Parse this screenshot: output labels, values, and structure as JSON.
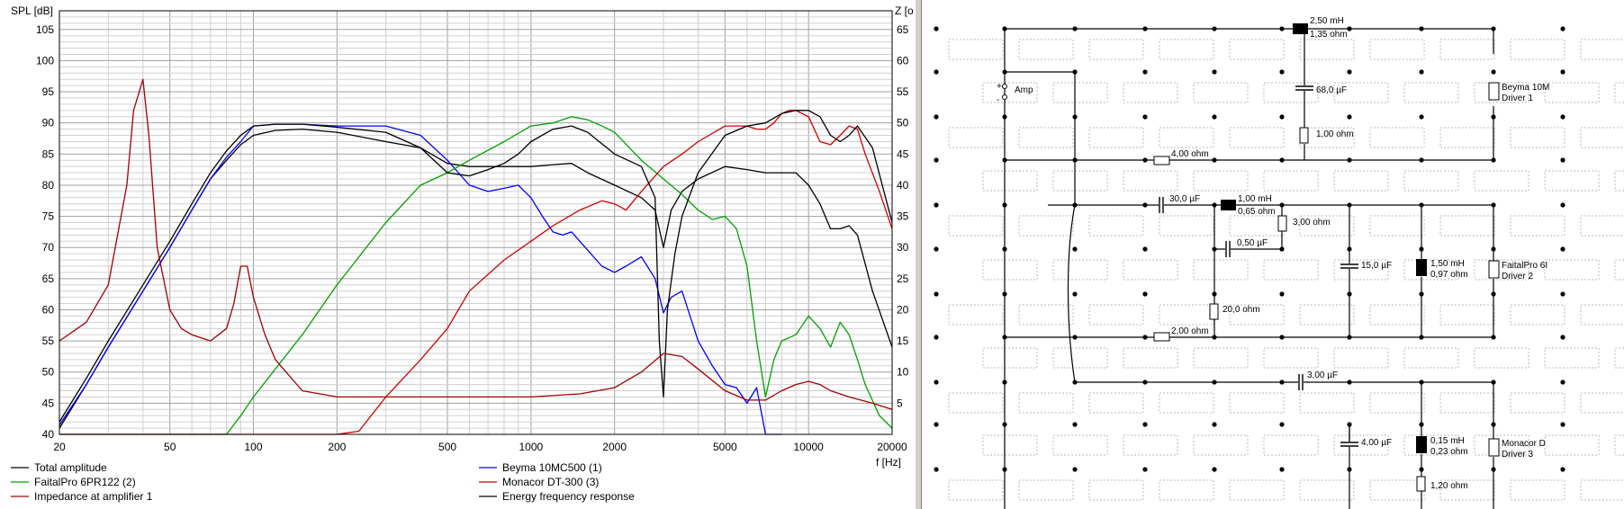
{
  "chart_data": {
    "type": "line",
    "x_scale": "log",
    "xlim": [
      20,
      20000
    ],
    "ylim": [
      40,
      108
    ],
    "y2lim": [
      0,
      68
    ],
    "grid": true,
    "ylabel": "SPL [dB]",
    "y2label": "Z [o",
    "xlabel": "f [Hz]",
    "x_ticks": [
      {
        "v": 20,
        "label": "20"
      },
      {
        "v": 50,
        "label": "50"
      },
      {
        "v": 100,
        "label": "100"
      },
      {
        "v": 200,
        "label": "200"
      },
      {
        "v": 500,
        "label": "500"
      },
      {
        "v": 1000,
        "label": "1000"
      },
      {
        "v": 2000,
        "label": "2000"
      },
      {
        "v": 5000,
        "label": "5000"
      },
      {
        "v": 10000,
        "label": "10000"
      },
      {
        "v": 20000,
        "label": "20000"
      }
    ],
    "y_ticks": [
      {
        "v": 105,
        "label": "105"
      },
      {
        "v": 100,
        "label": "100"
      },
      {
        "v": 95,
        "label": "95"
      },
      {
        "v": 90,
        "label": "90"
      },
      {
        "v": 85,
        "label": "85"
      },
      {
        "v": 80,
        "label": "80"
      },
      {
        "v": 75,
        "label": "75"
      },
      {
        "v": 70,
        "label": "70"
      },
      {
        "v": 65,
        "label": "65"
      },
      {
        "v": 60,
        "label": "60"
      },
      {
        "v": 55,
        "label": "55"
      },
      {
        "v": 50,
        "label": "50"
      },
      {
        "v": 45,
        "label": "45"
      },
      {
        "v": 40,
        "label": "40"
      }
    ],
    "y2_ticks": [
      {
        "v": 65,
        "label": "65"
      },
      {
        "v": 60,
        "label": "60"
      },
      {
        "v": 55,
        "label": "55"
      },
      {
        "v": 50,
        "label": "50"
      },
      {
        "v": 45,
        "label": "45"
      },
      {
        "v": 40,
        "label": "40"
      },
      {
        "v": 35,
        "label": "35"
      },
      {
        "v": 30,
        "label": "30"
      },
      {
        "v": 25,
        "label": "25"
      },
      {
        "v": 20,
        "label": "20"
      },
      {
        "v": 15,
        "label": "15"
      },
      {
        "v": 10,
        "label": "10"
      },
      {
        "v": 5,
        "label": "5"
      }
    ],
    "series": [
      {
        "name": "Total amplitude",
        "color": "#000000",
        "axis": "left",
        "x": [
          20,
          25,
          30,
          40,
          50,
          60,
          70,
          80,
          90,
          100,
          120,
          150,
          200,
          300,
          400,
          500,
          600,
          700,
          800,
          900,
          1000,
          1200,
          1400,
          1600,
          2000,
          2500,
          2800,
          3000,
          3200,
          3500,
          4000,
          5000,
          6000,
          7000,
          8000,
          9000,
          10000,
          11000,
          12000,
          13000,
          14000,
          15000,
          17000,
          20000
        ],
        "y": [
          41,
          48,
          54,
          63,
          70,
          76,
          81,
          84,
          86.5,
          88,
          88.8,
          89,
          88.5,
          87,
          86,
          83.5,
          83,
          83,
          83,
          83,
          83,
          83.3,
          83.5,
          82,
          80,
          78,
          76,
          70,
          76,
          79,
          81,
          83,
          82.5,
          82,
          82,
          82,
          80,
          77,
          73,
          73,
          73.5,
          72,
          63,
          54
        ]
      },
      {
        "name": "Beyma 10MC500 (1)",
        "color": "#0000ff",
        "axis": "left",
        "x": [
          20,
          25,
          30,
          40,
          50,
          60,
          70,
          80,
          90,
          100,
          120,
          150,
          200,
          300,
          400,
          500,
          600,
          700,
          800,
          900,
          1000,
          1100,
          1200,
          1300,
          1400,
          1500,
          1800,
          2000,
          2200,
          2500,
          2800,
          3000,
          3200,
          3500,
          4000,
          4500,
          5000,
          5500,
          6000,
          6500,
          7000,
          8000
        ],
        "y": [
          41.5,
          48,
          54,
          63,
          70,
          76,
          81,
          84.5,
          87,
          89.5,
          89.8,
          89.8,
          89.5,
          89.5,
          88,
          84,
          80,
          79,
          79.5,
          80,
          78,
          75,
          72.5,
          72,
          72.5,
          71,
          67,
          66,
          67,
          68.5,
          65,
          59.5,
          62,
          63,
          55,
          51,
          48,
          47.5,
          45,
          47.5,
          40,
          40
        ]
      },
      {
        "name": "FaitalPro 6PR122 (2)",
        "color": "#00a000",
        "axis": "left",
        "x": [
          20,
          40,
          60,
          80,
          90,
          100,
          150,
          200,
          300,
          400,
          500,
          600,
          800,
          1000,
          1200,
          1400,
          1600,
          1800,
          2000,
          2500,
          3000,
          3500,
          4000,
          4500,
          5000,
          5500,
          6000,
          6500,
          7000,
          7500,
          8000,
          9000,
          10000,
          11000,
          12000,
          13000,
          14000,
          15000,
          16000,
          18000,
          20000
        ],
        "y": [
          40,
          40,
          40,
          40,
          43,
          46,
          56,
          64,
          74,
          80,
          82,
          84,
          87,
          89.5,
          90,
          91,
          90.5,
          89.5,
          88.5,
          84,
          81,
          78.5,
          76,
          74.5,
          75,
          73,
          67,
          55,
          46,
          52,
          55,
          56,
          59,
          57,
          54,
          58,
          56,
          52,
          48,
          43,
          41
        ]
      },
      {
        "name": "Monacor DT-300 (3)",
        "color": "#d00000",
        "axis": "left",
        "x": [
          20,
          100,
          200,
          240,
          300,
          400,
          500,
          600,
          800,
          1000,
          1200,
          1500,
          1800,
          2000,
          2200,
          2500,
          3000,
          3500,
          4000,
          5000,
          6000,
          6500,
          7000,
          7500,
          8000,
          8500,
          9000,
          10000,
          11000,
          12000,
          13000,
          14000,
          15000,
          16000,
          18000,
          20000
        ],
        "y": [
          40,
          40,
          40,
          40.5,
          46,
          52,
          57,
          63,
          68,
          71,
          73.5,
          76,
          77.5,
          77,
          76,
          79,
          83,
          85,
          87,
          89.5,
          89.5,
          89,
          89,
          90,
          91.5,
          92,
          92,
          91,
          87,
          86.5,
          88,
          89.5,
          89,
          85,
          79,
          73
        ]
      },
      {
        "name": "Energy frequency response",
        "color": "#000000",
        "axis": "left",
        "x": [
          20,
          25,
          30,
          40,
          50,
          60,
          70,
          80,
          90,
          100,
          120,
          150,
          200,
          300,
          400,
          500,
          600,
          700,
          800,
          900,
          1000,
          1200,
          1400,
          1600,
          2000,
          2500,
          2800,
          2900,
          3000,
          3100,
          3300,
          3500,
          4000,
          5000,
          6000,
          7000,
          8000,
          9000,
          10000,
          11000,
          12000,
          13000,
          14000,
          15000,
          17000,
          20000
        ],
        "y": [
          42,
          49,
          55,
          64,
          71,
          77,
          82,
          85.5,
          88,
          89.5,
          89.8,
          89.8,
          89.3,
          88.5,
          86,
          82,
          81.5,
          82.5,
          83.5,
          85,
          87,
          89,
          89.5,
          88.5,
          85,
          83,
          78,
          55,
          46,
          60,
          69,
          75,
          82,
          88,
          89.5,
          90,
          91.5,
          92,
          92,
          91,
          88,
          87,
          88,
          89.5,
          86,
          74
        ]
      },
      {
        "name": "Impedance at amplifier 1",
        "color": "#a00000",
        "axis": "right",
        "x": [
          20,
          25,
          30,
          35,
          37,
          40,
          42,
          45,
          50,
          55,
          60,
          70,
          80,
          85,
          90,
          95,
          100,
          110,
          120,
          150,
          200,
          300,
          500,
          1000,
          1500,
          2000,
          2500,
          3000,
          3500,
          4000,
          5000,
          6000,
          7000,
          8000,
          9000,
          10000,
          11000,
          12000,
          14000,
          17000,
          20000
        ],
        "y": [
          15,
          18,
          24,
          40,
          52,
          57,
          48,
          30,
          20,
          17,
          16,
          15,
          17,
          21,
          27,
          27,
          22,
          16,
          12,
          7,
          6,
          6,
          6,
          6,
          6.5,
          7.5,
          10,
          13,
          12.5,
          10.5,
          7,
          5.5,
          5.5,
          7,
          8,
          8.5,
          8,
          7,
          6,
          5,
          4
        ]
      }
    ]
  },
  "schematic": {
    "labels": {
      "l1": "2,50 mH",
      "l1r": "1,35 ohm",
      "c1": "68,0 µF",
      "r1": "1,00 ohm",
      "amp": "Amp",
      "amp_plus": "+",
      "amp_minus": "-",
      "d1_name": "Beyma 10M",
      "d1_num": "Driver 1",
      "r4": "4,00 ohm",
      "c30": "30,0 µF",
      "l2": "1,00 mH",
      "l2r": "0,65 ohm",
      "r3": "3,00 ohm",
      "c05": "0,50 µF",
      "c15": "15,0 µF",
      "l3": "1,50 mH",
      "l3r": "0,97 ohm",
      "d2_name": "FaitalPro 6I",
      "d2_num": "Driver 2",
      "r20": "20,0 ohm",
      "r2": "2,00 ohm",
      "c3": "3,00 µF",
      "c4": "4,00 µF",
      "l4": "0,15 mH",
      "l4r": "0,23 ohm",
      "d3_name": "Monacor D",
      "d3_num": "Driver 3",
      "r12": "1,20 ohm"
    }
  },
  "colors": {
    "grid_minor": "#d0d0d0",
    "grid_major": "#a0a0a0",
    "splitter": "#d4d0c8",
    "placeholder": "#b8b8b8"
  }
}
